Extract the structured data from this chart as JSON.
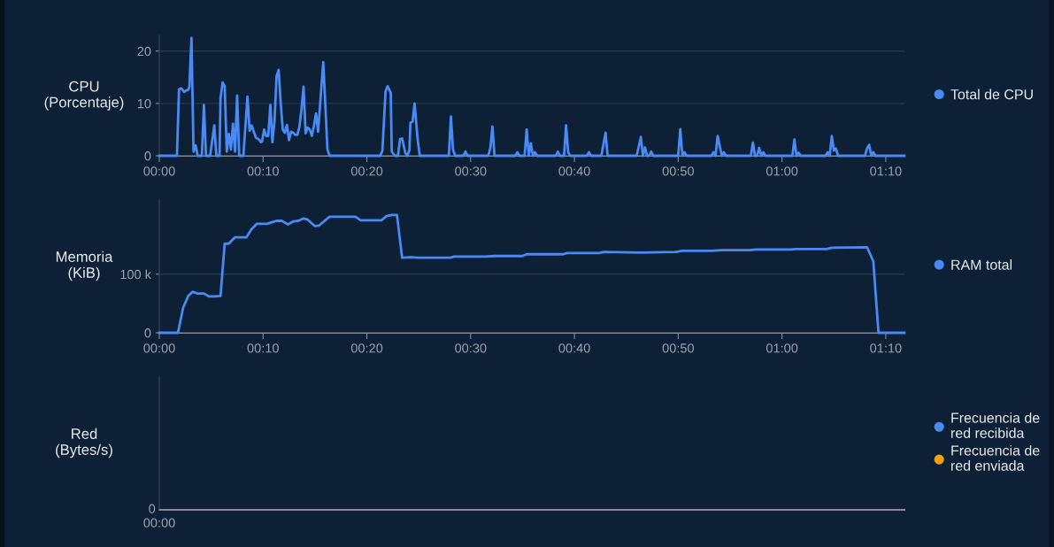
{
  "chart_data": [
    {
      "type": "line",
      "ylabel": "CPU\n(Porcentaje)",
      "xlim": [
        0,
        71.8
      ],
      "xticks": [
        {
          "value": 0,
          "label": "00:00"
        },
        {
          "value": 10,
          "label": "00:10"
        },
        {
          "value": 20,
          "label": "00:20"
        },
        {
          "value": 30,
          "label": "00:30"
        },
        {
          "value": 40,
          "label": "00:40"
        },
        {
          "value": 50,
          "label": "00:50"
        },
        {
          "value": 60,
          "label": "01:00"
        },
        {
          "value": 70,
          "label": "01:10"
        }
      ],
      "ylim": [
        0,
        23
      ],
      "yticks": [
        0,
        10,
        20
      ],
      "grid": "y",
      "legend": "right",
      "series": [
        {
          "name": "Total de CPU",
          "color": "#4a8af4",
          "x": [
            0,
            1.7,
            1.9,
            2.1,
            2.4,
            2.6,
            2.8,
            2.9,
            3.1,
            3.3,
            3.5,
            3.7,
            4.1,
            4.3,
            4.5,
            4.9,
            5.3,
            5.5,
            5.8,
            5.9,
            6.1,
            6.3,
            6.5,
            6.7,
            6.9,
            7.1,
            7.3,
            7.5,
            7.7,
            8.1,
            8.5,
            8.7,
            8.9,
            9.1,
            9.3,
            9.6,
            9.8,
            9.9,
            10.1,
            10.3,
            10.5,
            10.7,
            10.9,
            11.1,
            11.3,
            11.5,
            11.7,
            11.9,
            12.1,
            12.3,
            12.5,
            12.7,
            12.9,
            13.1,
            13.3,
            13.5,
            13.7,
            13.9,
            14.1,
            14.3,
            14.5,
            14.7,
            14.9,
            15.1,
            15.3,
            15.8,
            16.2,
            16.4,
            21.3,
            21.5,
            21.8,
            22.0,
            22.3,
            22.4,
            22.7,
            23.0,
            23.2,
            23.4,
            23.7,
            23.9,
            24.1,
            24.2,
            24.4,
            24.6,
            24.9,
            25.1,
            27.9,
            28.1,
            28.3,
            28.5,
            29.3,
            29.5,
            29.7,
            31.7,
            31.9,
            32.1,
            32.3,
            34.3,
            34.5,
            34.7,
            35.2,
            35.4,
            35.6,
            35.8,
            36.0,
            36.2,
            36.4,
            38.2,
            38.4,
            38.6,
            39.0,
            39.2,
            39.4,
            39.6,
            41.2,
            41.4,
            41.6,
            42.6,
            43.0,
            43.2,
            46.0,
            46.4,
            46.6,
            46.8,
            47.0,
            47.2,
            47.4,
            47.6,
            50.0,
            50.2,
            50.4,
            50.6,
            50.8,
            53.2,
            53.4,
            53.6,
            53.8,
            54.2,
            54.4,
            54.6,
            57.0,
            57.2,
            57.4,
            57.6,
            57.8,
            58.0,
            58.2,
            58.4,
            61.0,
            61.2,
            61.4,
            61.6,
            61.8,
            64.2,
            64.4,
            64.6,
            64.8,
            65.0,
            65.2,
            65.4,
            68.0,
            68.2,
            68.4,
            68.6,
            68.8,
            69.0,
            71.8
          ],
          "values": [
            0,
            0,
            12.7,
            12.9,
            12.2,
            12.5,
            12.6,
            13.2,
            22.5,
            0.8,
            2.0,
            0,
            0,
            9.7,
            0,
            0,
            5.8,
            0,
            0,
            11,
            14,
            13.3,
            0.8,
            4.2,
            1.2,
            6.1,
            0.8,
            11.5,
            0,
            0,
            11.3,
            4.8,
            5.8,
            4.6,
            3.5,
            3.1,
            2.6,
            2.7,
            5.0,
            3.8,
            3.8,
            9.7,
            2.6,
            6.6,
            15.2,
            16.4,
            10,
            5,
            4.4,
            5.9,
            3,
            4.6,
            4.4,
            4,
            4,
            5.5,
            8.8,
            13.2,
            4.3,
            5.4,
            5,
            3.8,
            5.7,
            8.1,
            4.6,
            17.9,
            1.3,
            0,
            0,
            1,
            12.3,
            13.3,
            12,
            0.8,
            0,
            0,
            3.2,
            3.3,
            0.6,
            0,
            1,
            6.3,
            6.5,
            10,
            3,
            0,
            0,
            7.5,
            1.2,
            0,
            0,
            0.8,
            0,
            0,
            1.5,
            5.6,
            0,
            0,
            0.7,
            0,
            0,
            5.0,
            0,
            2.4,
            0,
            0.7,
            0,
            0,
            0.8,
            0,
            0,
            5.8,
            0.6,
            0,
            0,
            0.7,
            0,
            0,
            4.4,
            0,
            0,
            3.6,
            0,
            1.6,
            0,
            0,
            0.8,
            0,
            0,
            5.1,
            0,
            0.7,
            0,
            0,
            0.7,
            0,
            3.8,
            0,
            0.7,
            0,
            0,
            2.5,
            0,
            0,
            1.5,
            0,
            0.7,
            0,
            0,
            3.1,
            0,
            0.6,
            0,
            0,
            0.7,
            0,
            3.8,
            1,
            1.4,
            0,
            0,
            1.4,
            2.1,
            0,
            0.7,
            0,
            0
          ]
        }
      ]
    },
    {
      "type": "line",
      "ylabel": "Memoria\n(KiB)",
      "xlim": [
        0,
        71.8
      ],
      "xticks": [
        {
          "value": 0,
          "label": "00:00"
        },
        {
          "value": 10,
          "label": "00:10"
        },
        {
          "value": 20,
          "label": "00:20"
        },
        {
          "value": 30,
          "label": "00:30"
        },
        {
          "value": 40,
          "label": "00:40"
        },
        {
          "value": 50,
          "label": "00:50"
        },
        {
          "value": 60,
          "label": "01:00"
        },
        {
          "value": 70,
          "label": "01:10"
        }
      ],
      "ylim": [
        0,
        228000
      ],
      "yticks": [
        0,
        {
          "value": 100000,
          "label": "100 k"
        }
      ],
      "grid": "y",
      "legend": "right",
      "series": [
        {
          "name": "RAM total",
          "color": "#4a8af4",
          "x": [
            0,
            1.8,
            2.3,
            2.8,
            3.2,
            3.7,
            4.3,
            4.8,
            5.3,
            5.9,
            6.3,
            6.7,
            7.3,
            8.4,
            8.9,
            9.4,
            10.4,
            10.9,
            11.3,
            11.8,
            12.4,
            12.9,
            13.4,
            13.9,
            14.3,
            15.0,
            15.4,
            16.4,
            18.9,
            19.4,
            21.4,
            21.9,
            22.4,
            22.9,
            23.4,
            24.3,
            24.9,
            28.0,
            28.4,
            31.4,
            32.3,
            35.0,
            35.4,
            38.9,
            39.3,
            42.4,
            42.8,
            46.4,
            49.8,
            50.4,
            53.2,
            54.2,
            56.9,
            57.5,
            60.9,
            61.3,
            64.3,
            64.8,
            68.2,
            68.8,
            69.3,
            71.8
          ],
          "values": [
            0,
            0,
            43000,
            63000,
            70000,
            67000,
            67000,
            62000,
            62000,
            63000,
            152000,
            152000,
            163000,
            163000,
            177000,
            186000,
            186000,
            189000,
            191000,
            191000,
            185000,
            190000,
            191000,
            195000,
            193000,
            182000,
            183000,
            198000,
            198000,
            192000,
            192000,
            199000,
            201000,
            201000,
            128000,
            129000,
            128000,
            128000,
            130000,
            130000,
            131000,
            131000,
            134000,
            134000,
            136000,
            136000,
            138000,
            137000,
            138000,
            140000,
            140000,
            141000,
            141000,
            142000,
            142000,
            143000,
            143000,
            145000,
            146000,
            122000,
            0,
            0
          ]
        }
      ]
    },
    {
      "type": "other",
      "ylabel": "Red\n(Bytes/s)",
      "annotations": [
        "0",
        "00:00"
      ],
      "legend": "right",
      "series": [
        {
          "name": "Frecuencia de\nred recibida",
          "color": "#4a8af4"
        },
        {
          "name": "Frecuencia de\nred enviada",
          "color": "#f5a011"
        }
      ]
    }
  ]
}
